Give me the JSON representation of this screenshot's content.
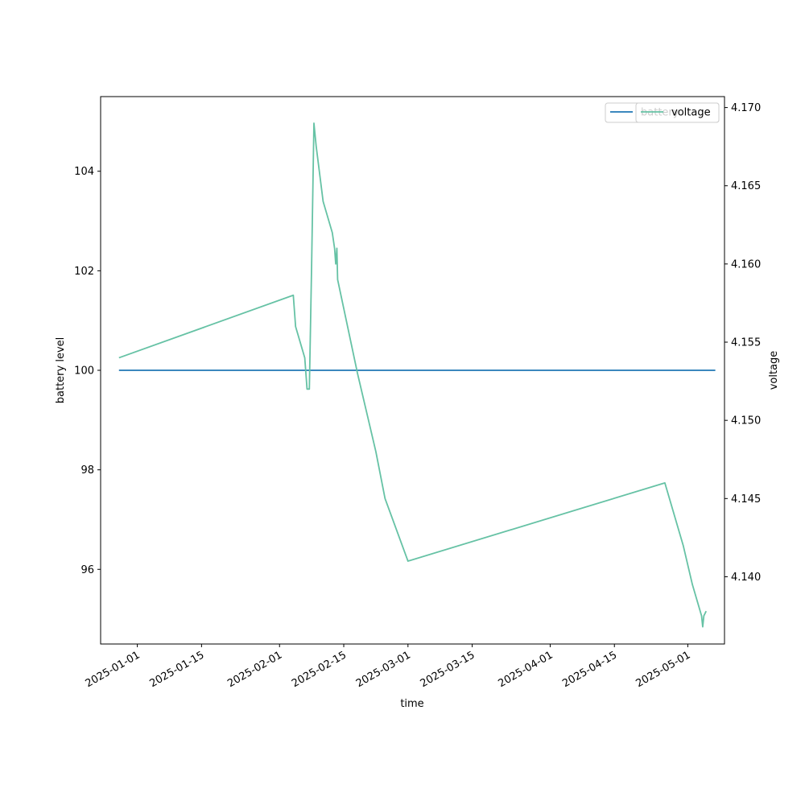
{
  "chart_data": {
    "type": "line",
    "xlabel": "time",
    "ylabel_left": "battery level",
    "ylabel_right": "voltage",
    "xlim": [
      "2024-12-24",
      "2025-05-09"
    ],
    "ylim_left": [
      94.5,
      105.5
    ],
    "ylim_right": [
      4.1357,
      4.1707
    ],
    "x_ticks": [
      "2025-01-01",
      "2025-01-15",
      "2025-02-01",
      "2025-02-15",
      "2025-03-01",
      "2025-03-15",
      "2025-04-01",
      "2025-04-15",
      "2025-05-01"
    ],
    "y_ticks_left": [
      "96",
      "98",
      "100",
      "102",
      "104"
    ],
    "y_ticks_right": [
      "4.140",
      "4.145",
      "4.150",
      "4.155",
      "4.160",
      "4.165",
      "4.170"
    ],
    "grid": false,
    "legends": [
      {
        "placement": "top-right",
        "entries": [
          "battery"
        ]
      },
      {
        "placement": "top-right",
        "entries": [
          "voltage"
        ]
      }
    ],
    "series": [
      {
        "name": "battery",
        "axis": "left",
        "color": "#1f77b4",
        "points": [
          [
            "2024-12-28",
            100
          ],
          [
            "2025-05-07",
            100
          ]
        ]
      },
      {
        "name": "voltage",
        "axis": "right",
        "color": "#66c2a5",
        "points": [
          [
            "2024-12-28",
            4.154
          ],
          [
            "2025-02-04",
            4.158
          ],
          [
            "2025-02-04 12:00",
            4.156
          ],
          [
            "2025-02-06 12:00",
            4.154
          ],
          [
            "2025-02-07",
            4.152
          ],
          [
            "2025-02-07 12:00",
            4.152
          ],
          [
            "2025-02-08",
            4.16
          ],
          [
            "2025-02-08 12:00",
            4.169
          ],
          [
            "2025-02-09",
            4.1675
          ],
          [
            "2025-02-10 12:00",
            4.164
          ],
          [
            "2025-02-12 12:00",
            4.162
          ],
          [
            "2025-02-13",
            4.161
          ],
          [
            "2025-02-13 06:00",
            4.16
          ],
          [
            "2025-02-13 12:00",
            4.161
          ],
          [
            "2025-02-13 16:00",
            4.159
          ],
          [
            "2025-02-18",
            4.153
          ],
          [
            "2025-02-20",
            4.1505
          ],
          [
            "2025-02-22",
            4.148
          ],
          [
            "2025-02-24",
            4.145
          ],
          [
            "2025-03-01",
            4.141
          ],
          [
            "2025-04-26",
            4.146
          ],
          [
            "2025-04-30",
            4.142
          ],
          [
            "2025-05-02",
            4.1395
          ],
          [
            "2025-05-04",
            4.1375
          ],
          [
            "2025-05-04 06:00",
            4.1368
          ],
          [
            "2025-05-04 12:00",
            4.1375
          ],
          [
            "2025-05-05",
            4.1378
          ]
        ]
      }
    ]
  }
}
